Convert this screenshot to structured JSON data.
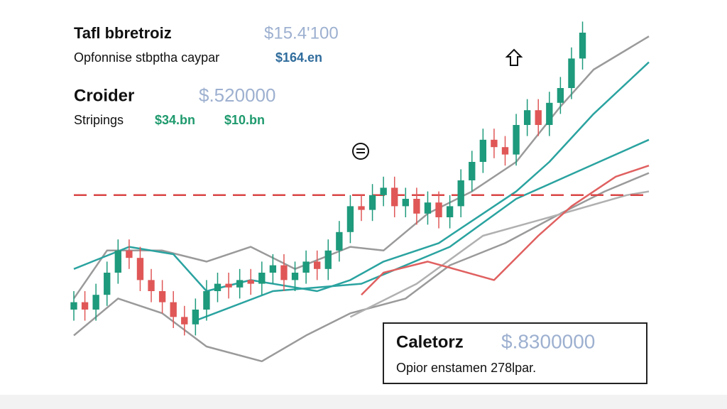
{
  "header": {
    "title": "Tafl bbretroiz",
    "value": "$15.4'100",
    "subtitle": "Opfonnise stbptha caypar",
    "sub_value": "$164.en"
  },
  "section": {
    "title": "Croider",
    "value": "$.520000",
    "label": "Stripings",
    "value_a": "$34.bn",
    "value_b": "$10.bn"
  },
  "info_box": {
    "title": "Caletorz",
    "value": "$.8300000",
    "text": "Opior enstamen 278lpar."
  },
  "chart_data": {
    "type": "candlestick",
    "xlim": [
      0,
      52
    ],
    "ylim": [
      0,
      100
    ],
    "up_color": "#1e9a7c",
    "down_color": "#e05757",
    "ref_line": 51,
    "ref_line_color": "#d94545",
    "x": [
      0,
      1,
      2,
      3,
      4,
      5,
      6,
      7,
      8,
      9,
      10,
      11,
      12,
      13,
      14,
      15,
      16,
      17,
      18,
      19,
      20,
      21,
      22,
      23,
      24,
      25,
      26,
      27,
      28,
      29,
      30,
      31,
      32,
      33,
      34,
      35,
      36,
      37,
      38,
      39,
      40,
      41,
      42,
      43,
      44,
      45,
      46
    ],
    "open": [
      20,
      22,
      20,
      24,
      30,
      36,
      34,
      28,
      25,
      22,
      18,
      16,
      20,
      25,
      27,
      26,
      28,
      27,
      30,
      32,
      28,
      30,
      33,
      31,
      36,
      41,
      48,
      47,
      51,
      53,
      48,
      50,
      46,
      49,
      45,
      48,
      55,
      60,
      66,
      64,
      62,
      70,
      74,
      70,
      76,
      80,
      88
    ],
    "high": [
      25,
      25,
      27,
      33,
      39,
      39,
      37,
      31,
      28,
      25,
      21,
      23,
      28,
      30,
      30,
      31,
      31,
      33,
      35,
      35,
      33,
      36,
      36,
      39,
      44,
      51,
      51,
      54,
      56,
      56,
      53,
      53,
      52,
      52,
      51,
      58,
      63,
      69,
      69,
      67,
      73,
      77,
      77,
      79,
      83,
      91,
      98
    ],
    "low": [
      17,
      17,
      17,
      21,
      27,
      31,
      25,
      22,
      19,
      15,
      13,
      13,
      17,
      22,
      23,
      23,
      24,
      24,
      27,
      25,
      25,
      27,
      28,
      28,
      33,
      38,
      44,
      44,
      48,
      45,
      45,
      43,
      43,
      42,
      42,
      45,
      52,
      57,
      61,
      59,
      59,
      67,
      67,
      67,
      73,
      77,
      85
    ],
    "close": [
      22,
      20,
      24,
      30,
      36,
      34,
      28,
      25,
      22,
      18,
      16,
      20,
      25,
      27,
      26,
      28,
      27,
      30,
      32,
      28,
      30,
      33,
      31,
      36,
      41,
      48,
      47,
      51,
      53,
      48,
      50,
      46,
      49,
      45,
      48,
      55,
      60,
      66,
      64,
      62,
      70,
      74,
      70,
      76,
      80,
      88,
      95
    ],
    "lines": [
      {
        "color": "#9a9a9a",
        "x": [
          0,
          3,
          8,
          12,
          16,
          20,
          25,
          28,
          32,
          36,
          40,
          44,
          47,
          52
        ],
        "values": [
          23,
          36,
          36,
          33,
          37,
          31,
          37,
          36,
          46,
          52,
          60,
          75,
          85,
          94
        ]
      },
      {
        "color": "#9a9a9a",
        "x": [
          0,
          4,
          8,
          12,
          17,
          21,
          25,
          30,
          34,
          39,
          44,
          48,
          52
        ],
        "values": [
          13,
          23,
          19,
          10,
          6,
          13,
          19,
          23,
          32,
          38,
          46,
          52,
          57
        ]
      },
      {
        "color": "#b0b0b0",
        "x": [
          25,
          31,
          37,
          43,
          50,
          52
        ],
        "values": [
          18,
          27,
          40,
          45,
          51,
          52
        ]
      },
      {
        "color": "#2aa3a0",
        "x": [
          0,
          5,
          9,
          12,
          16,
          22,
          25,
          28,
          33,
          37,
          40,
          43,
          47,
          52
        ],
        "values": [
          31,
          37,
          35,
          25,
          28,
          25,
          28,
          33,
          38,
          46,
          52,
          60,
          73,
          87
        ]
      },
      {
        "color": "#2aa3a0",
        "x": [
          11,
          18,
          26,
          34,
          40,
          46,
          52
        ],
        "values": [
          17,
          25,
          27,
          37,
          50,
          58,
          66
        ]
      },
      {
        "color": "#e06060",
        "x": [
          26,
          28,
          32,
          38,
          42,
          45,
          49,
          52
        ],
        "values": [
          24,
          30,
          33,
          28,
          40,
          48,
          56,
          59
        ]
      }
    ]
  }
}
